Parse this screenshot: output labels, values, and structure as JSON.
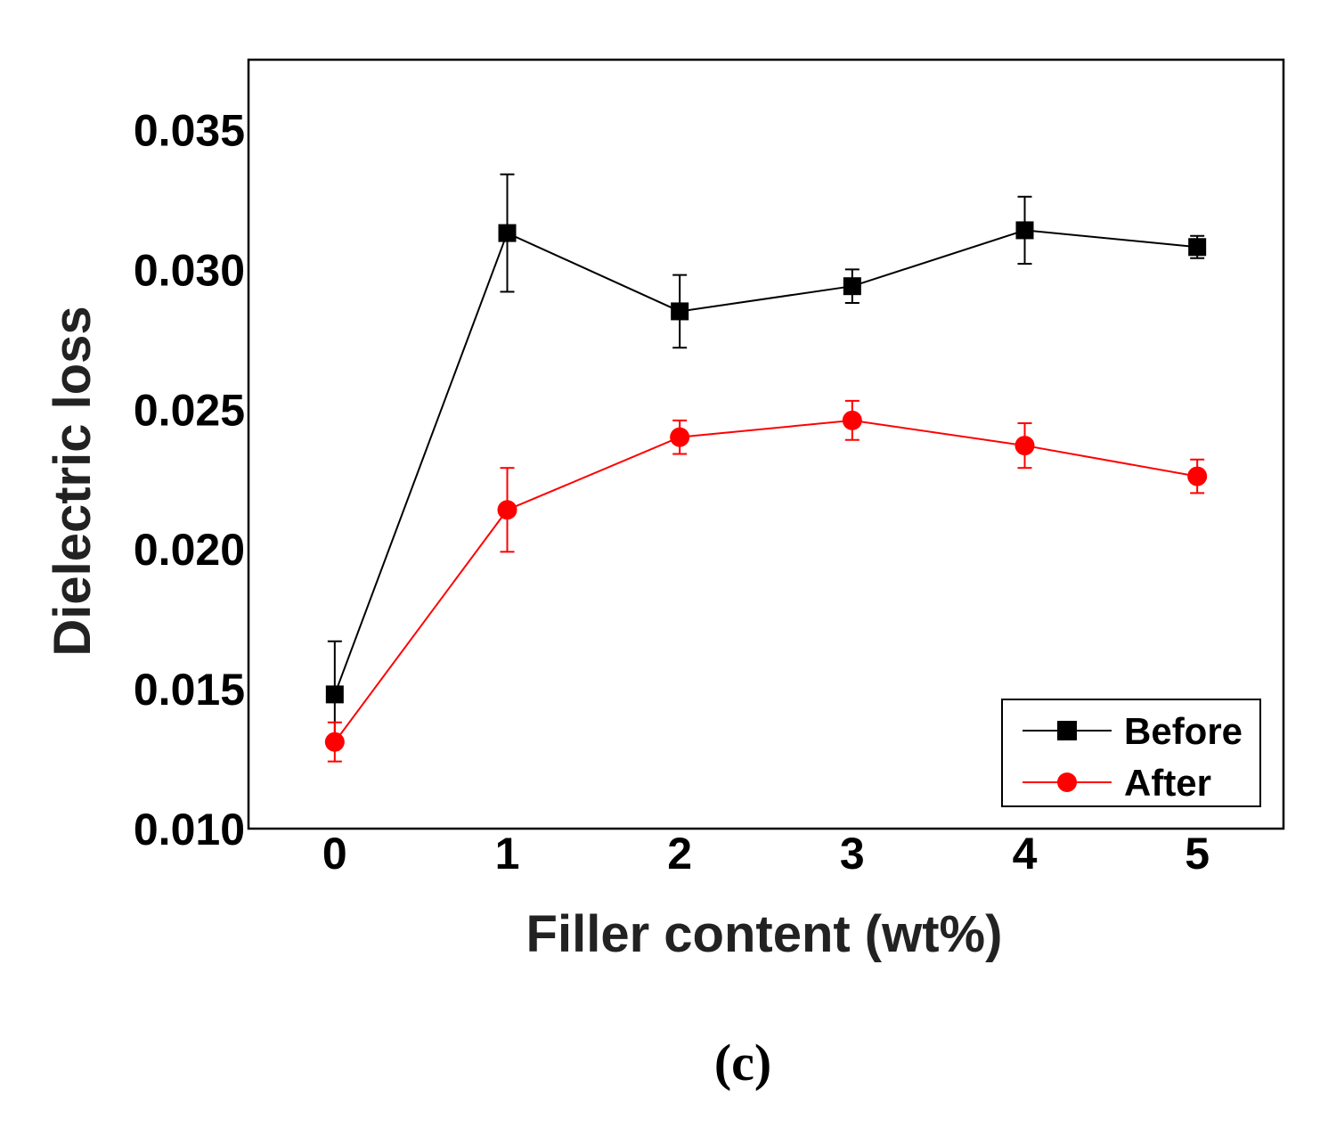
{
  "chart_data": {
    "type": "line",
    "title": "",
    "xlabel": "Filler content (wt%)",
    "ylabel": "Dielectric loss",
    "x": [
      0,
      1,
      2,
      3,
      4,
      5
    ],
    "x_tick_labels": [
      "0",
      "1",
      "2",
      "3",
      "4",
      "5"
    ],
    "xlim": [
      -0.5,
      5.5
    ],
    "ylim": [
      0.01,
      0.0375
    ],
    "y_ticks": [
      0.01,
      0.015,
      0.02,
      0.025,
      0.03,
      0.035
    ],
    "y_tick_labels": [
      "0.010",
      "0.015",
      "0.020",
      "0.025",
      "0.030",
      "0.035"
    ],
    "grid": false,
    "legend_position": "bottom-right",
    "series": [
      {
        "name": "Before",
        "color": "#000000",
        "marker": "square",
        "values": [
          0.0148,
          0.0313,
          0.0285,
          0.0294,
          0.0314,
          0.0308
        ],
        "errors": [
          0.0019,
          0.0021,
          0.0013,
          0.0006,
          0.0012,
          0.0004
        ]
      },
      {
        "name": "After",
        "color": "#ff0000",
        "marker": "circle",
        "values": [
          0.0131,
          0.0214,
          0.024,
          0.0246,
          0.0237,
          0.0226
        ],
        "errors": [
          0.0007,
          0.0015,
          0.0006,
          0.0007,
          0.0008,
          0.0006
        ]
      }
    ]
  },
  "caption": "(c)"
}
